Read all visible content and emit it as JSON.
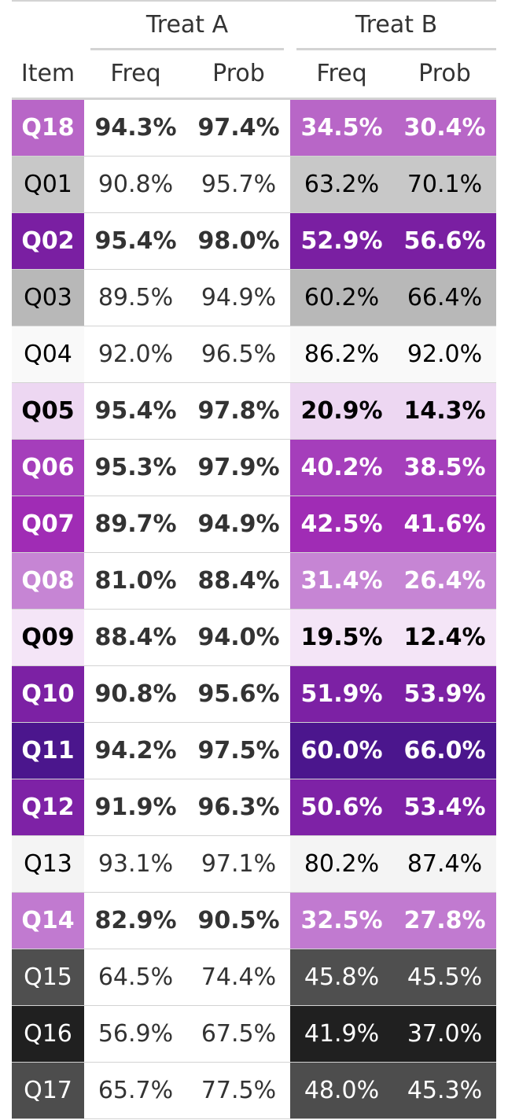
{
  "chart_data": {
    "type": "table",
    "column_groups": [
      {
        "label": "Treat A",
        "columns": [
          "Freq",
          "Prob"
        ]
      },
      {
        "label": "Treat B",
        "columns": [
          "Freq",
          "Prob"
        ]
      }
    ],
    "stub_header": "Item",
    "rows": [
      {
        "item": "Q18",
        "a_freq": "94.3%",
        "a_prob": "97.4%",
        "b_freq": "34.5%",
        "b_prob": "30.4%",
        "fill": "#b866c7",
        "text": "#ffffff",
        "bold": true
      },
      {
        "item": "Q01",
        "a_freq": "90.8%",
        "a_prob": "95.7%",
        "b_freq": "63.2%",
        "b_prob": "70.1%",
        "fill": "#c8c8c8",
        "text": "#000000",
        "bold": false
      },
      {
        "item": "Q02",
        "a_freq": "95.4%",
        "a_prob": "98.0%",
        "b_freq": "52.9%",
        "b_prob": "56.6%",
        "fill": "#7a1fa2",
        "text": "#ffffff",
        "bold": true
      },
      {
        "item": "Q03",
        "a_freq": "89.5%",
        "a_prob": "94.9%",
        "b_freq": "60.2%",
        "b_prob": "66.4%",
        "fill": "#b8b8b8",
        "text": "#000000",
        "bold": false
      },
      {
        "item": "Q04",
        "a_freq": "92.0%",
        "a_prob": "96.5%",
        "b_freq": "86.2%",
        "b_prob": "92.0%",
        "fill": "#f9f9f9",
        "text": "#000000",
        "bold": false
      },
      {
        "item": "Q05",
        "a_freq": "95.4%",
        "a_prob": "97.8%",
        "b_freq": "20.9%",
        "b_prob": "14.3%",
        "fill": "#edd7f2",
        "text": "#000000",
        "bold": true
      },
      {
        "item": "Q06",
        "a_freq": "95.3%",
        "a_prob": "97.9%",
        "b_freq": "40.2%",
        "b_prob": "38.5%",
        "fill": "#a53ebb",
        "text": "#ffffff",
        "bold": true
      },
      {
        "item": "Q07",
        "a_freq": "89.7%",
        "a_prob": "94.9%",
        "b_freq": "42.5%",
        "b_prob": "41.6%",
        "fill": "#a02cb5",
        "text": "#ffffff",
        "bold": true
      },
      {
        "item": "Q08",
        "a_freq": "81.0%",
        "a_prob": "88.4%",
        "b_freq": "31.4%",
        "b_prob": "26.4%",
        "fill": "#c685d4",
        "text": "#ffffff",
        "bold": true
      },
      {
        "item": "Q09",
        "a_freq": "88.4%",
        "a_prob": "94.0%",
        "b_freq": "19.5%",
        "b_prob": "12.4%",
        "fill": "#f4e5f7",
        "text": "#000000",
        "bold": true
      },
      {
        "item": "Q10",
        "a_freq": "90.8%",
        "a_prob": "95.6%",
        "b_freq": "51.9%",
        "b_prob": "53.9%",
        "fill": "#7c21a4",
        "text": "#ffffff",
        "bold": true
      },
      {
        "item": "Q11",
        "a_freq": "94.2%",
        "a_prob": "97.5%",
        "b_freq": "60.0%",
        "b_prob": "66.0%",
        "fill": "#4b168d",
        "text": "#ffffff",
        "bold": true
      },
      {
        "item": "Q12",
        "a_freq": "91.9%",
        "a_prob": "96.3%",
        "b_freq": "50.6%",
        "b_prob": "53.4%",
        "fill": "#7e22a6",
        "text": "#ffffff",
        "bold": true
      },
      {
        "item": "Q13",
        "a_freq": "93.1%",
        "a_prob": "97.1%",
        "b_freq": "80.2%",
        "b_prob": "87.4%",
        "fill": "#f4f4f4",
        "text": "#000000",
        "bold": false
      },
      {
        "item": "Q14",
        "a_freq": "82.9%",
        "a_prob": "90.5%",
        "b_freq": "32.5%",
        "b_prob": "27.8%",
        "fill": "#c17ad0",
        "text": "#ffffff",
        "bold": true
      },
      {
        "item": "Q15",
        "a_freq": "64.5%",
        "a_prob": "74.4%",
        "b_freq": "45.8%",
        "b_prob": "45.5%",
        "fill": "#4f4f4f",
        "text": "#ffffff",
        "bold": false
      },
      {
        "item": "Q16",
        "a_freq": "56.9%",
        "a_prob": "67.5%",
        "b_freq": "41.9%",
        "b_prob": "37.0%",
        "fill": "#202020",
        "text": "#ffffff",
        "bold": false
      },
      {
        "item": "Q17",
        "a_freq": "65.7%",
        "a_prob": "77.5%",
        "b_freq": "48.0%",
        "b_prob": "45.3%",
        "fill": "#4d4d4d",
        "text": "#ffffff",
        "bold": false
      }
    ]
  }
}
